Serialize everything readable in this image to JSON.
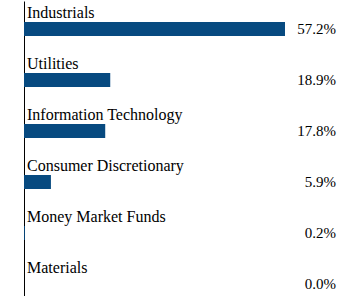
{
  "chart_data": {
    "type": "bar",
    "orientation": "horizontal",
    "categories": [
      "Industrials",
      "Utilities",
      "Information Technology",
      "Consumer Discretionary",
      "Money Market Funds",
      "Materials"
    ],
    "values": [
      57.2,
      18.9,
      17.8,
      5.9,
      0.2,
      0.0
    ],
    "value_labels": [
      "57.2%",
      "18.9%",
      "17.8%",
      "5.9%",
      "0.2%",
      "0.0%"
    ],
    "color": "#074a80",
    "xlim": [
      0,
      57.2
    ],
    "data_labels": true
  }
}
